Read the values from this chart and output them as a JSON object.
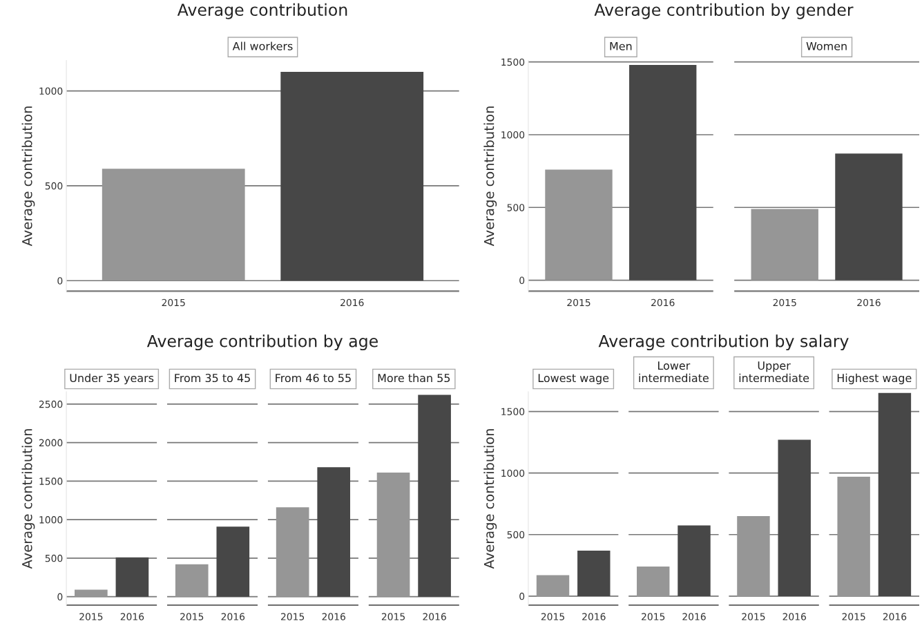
{
  "chart_data": [
    {
      "type": "bar",
      "title": "Average contribution",
      "ylabel": "Average contribution",
      "categories": [
        "2015",
        "2016"
      ],
      "values": [
        590,
        1100
      ],
      "colors": [
        "#969696",
        "#474747"
      ],
      "ylim": [
        -55,
        1160
      ],
      "yticks": [
        0,
        500,
        1000
      ],
      "grid": "y",
      "annotations": [
        "All workers"
      ]
    },
    {
      "type": "bar",
      "title": "Average contribution by gender",
      "ylabel": "Average contribution",
      "categories": [
        "2015",
        "2016",
        "2015",
        "2016"
      ],
      "values": [
        760,
        1480,
        490,
        870
      ],
      "colors": [
        "#969696",
        "#474747",
        "#969696",
        "#474747"
      ],
      "ylim": [
        -75,
        1510
      ],
      "yticks": [
        0,
        500,
        1000,
        1500
      ],
      "grid": "y",
      "annotations": [
        "Men",
        "Women"
      ]
    },
    {
      "type": "bar",
      "title": "Average contribution by age",
      "ylabel": "Average contribution",
      "categories": [
        "2015",
        "2016",
        "2015",
        "2016",
        "2015",
        "2016",
        "2015",
        "2016"
      ],
      "values": [
        90,
        510,
        420,
        910,
        1160,
        1680,
        1610,
        2620
      ],
      "colors": [
        "#969696",
        "#474747",
        "#969696",
        "#474747",
        "#969696",
        "#474747",
        "#969696",
        "#474747"
      ],
      "ylim": [
        -110,
        2660
      ],
      "yticks": [
        0,
        500,
        1000,
        1500,
        2000,
        2500
      ],
      "grid": "y",
      "annotations": [
        "Under 35 years",
        "From 35 to 45",
        "From 46 to 55",
        "More than 55"
      ]
    },
    {
      "type": "bar",
      "title": "Average contribution by salary",
      "ylabel": "Average contribution",
      "categories": [
        "2015",
        "2016",
        "2015",
        "2016",
        "2015",
        "2016",
        "2015",
        "2016"
      ],
      "values": [
        170,
        370,
        240,
        575,
        650,
        1270,
        970,
        1650
      ],
      "colors": [
        "#969696",
        "#474747",
        "#969696",
        "#474747",
        "#969696",
        "#474747",
        "#969696",
        "#474747"
      ],
      "ylim": [
        -73,
        1660
      ],
      "yticks": [
        0,
        500,
        1000,
        1500
      ],
      "grid": "y",
      "annotations": [
        "Lowest wage",
        "Lower\nintermediate",
        "Upper\nintermediate",
        "Highest wage"
      ]
    }
  ]
}
